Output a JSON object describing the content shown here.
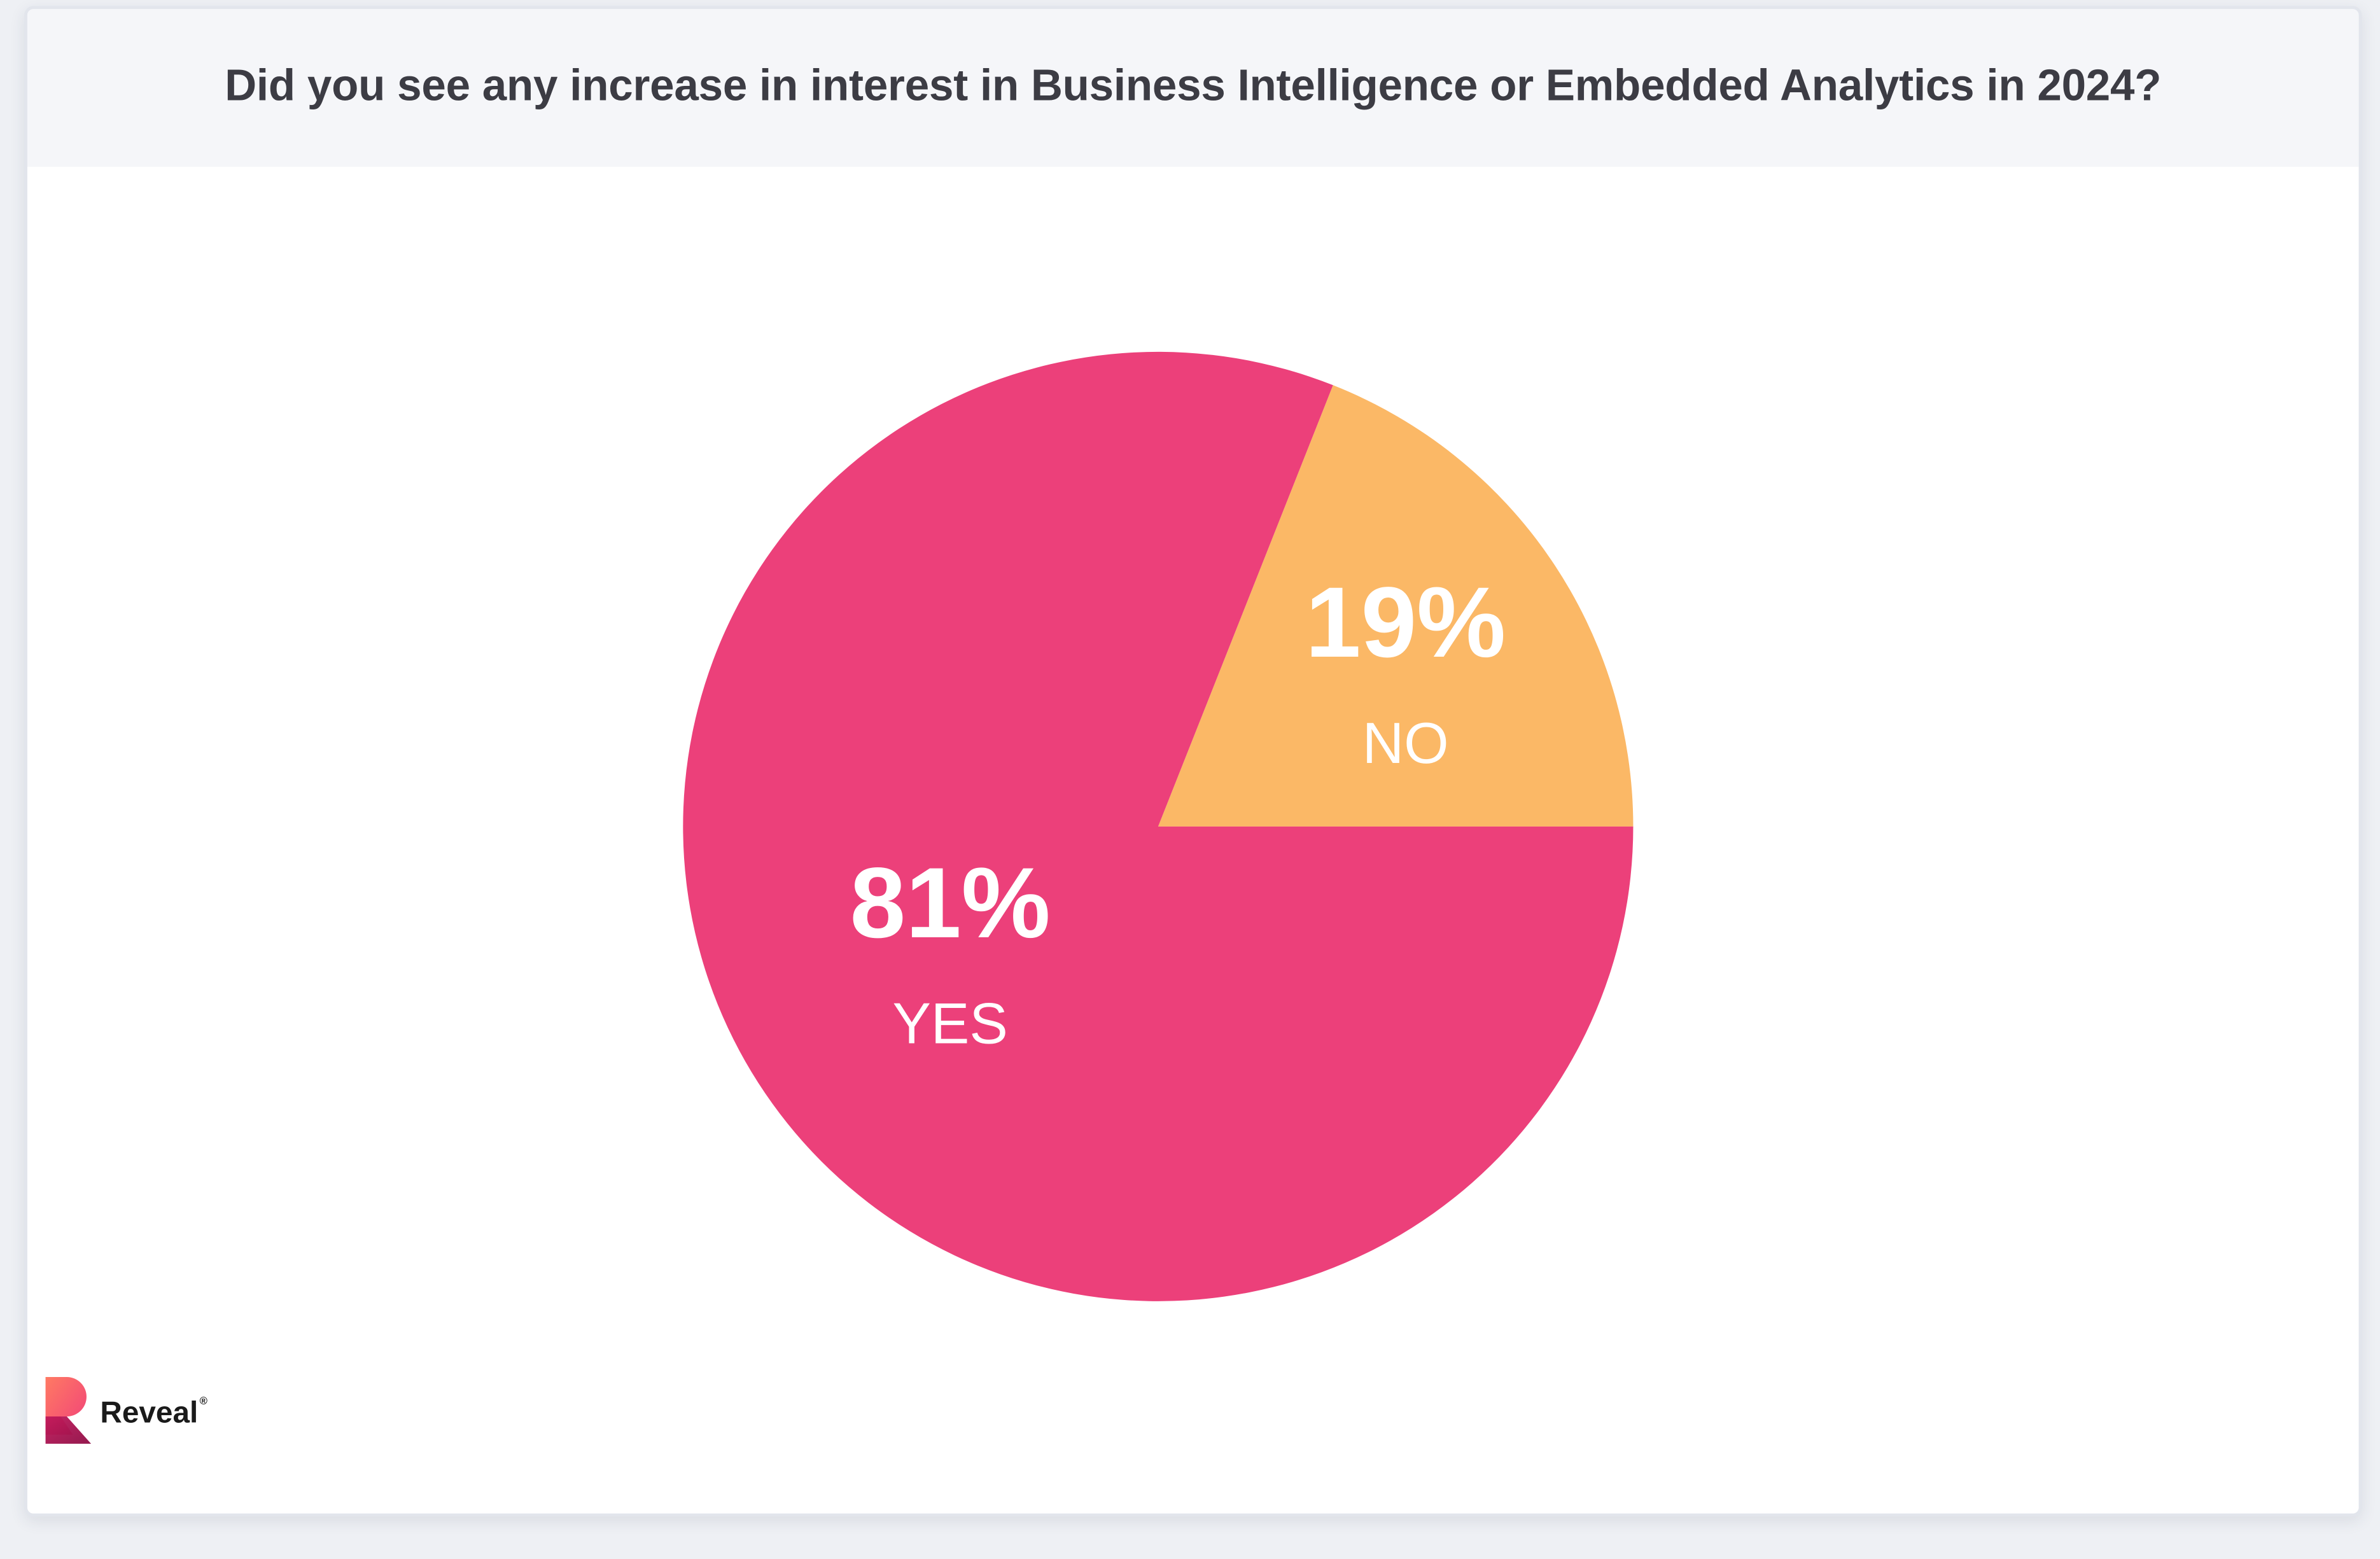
{
  "header": {
    "title": "Did you see any increase in interest in Business Intelligence or Embedded Analytics in 2024?"
  },
  "chart_data": {
    "type": "pie",
    "title": "Did you see any increase in interest in Business Intelligence or Embedded Analytics in 2024?",
    "slices": [
      {
        "label": "YES",
        "value": 81,
        "display": "81%",
        "color": "#ec407a"
      },
      {
        "label": "NO",
        "value": 19,
        "display": "19%",
        "color": "#fbb866"
      }
    ],
    "legend": "none"
  },
  "logo": {
    "text": "Reveal",
    "trademark": "®",
    "colors": {
      "top": "#ff5a78",
      "bottom": "#b0124f"
    }
  }
}
